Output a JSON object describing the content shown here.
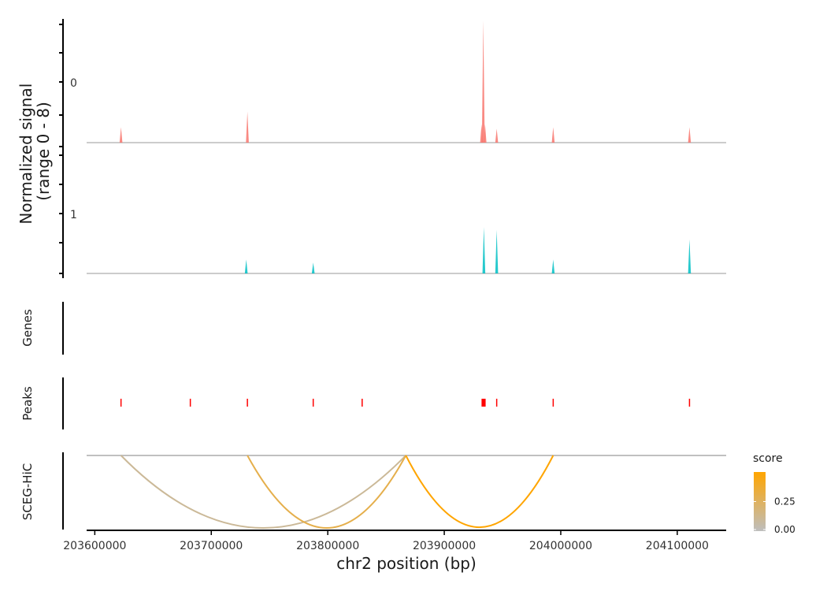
{
  "chart_data": {
    "type": "genome-track-plot",
    "region": {
      "chrom": "chr2",
      "start": 203593000,
      "end": 204142000
    },
    "x_ticks": [
      {
        "value": 203600000,
        "label": "203600000"
      },
      {
        "value": 203700000,
        "label": "203700000"
      },
      {
        "value": 203800000,
        "label": "203800000"
      },
      {
        "value": 203900000,
        "label": "203900000"
      },
      {
        "value": 204000000,
        "label": "204000000"
      },
      {
        "value": 204100000,
        "label": "204100000"
      }
    ],
    "xlabel": "chr2 position (bp)",
    "coverage": {
      "ylabel_line1": "Normalized signal",
      "ylabel_line2": "(range 0 - 8)",
      "ylim": [
        0,
        8
      ],
      "series": [
        {
          "name": "0",
          "color": "#f8766d",
          "peaks": [
            {
              "x": 203622500,
              "y": 1.0
            },
            {
              "x": 203731000,
              "y": 2.0
            },
            {
              "x": 203933500,
              "y": 7.9
            },
            {
              "x": 203932000,
              "y": 1.2
            },
            {
              "x": 203935000,
              "y": 1.2
            },
            {
              "x": 203945000,
              "y": 0.9
            },
            {
              "x": 203993500,
              "y": 1.0
            },
            {
              "x": 204110500,
              "y": 1.0
            }
          ]
        },
        {
          "name": "1",
          "color": "#00bfc4",
          "peaks": [
            {
              "x": 203730000,
              "y": 0.9
            },
            {
              "x": 203787500,
              "y": 0.7
            },
            {
              "x": 203934000,
              "y": 3.0
            },
            {
              "x": 203945000,
              "y": 2.8
            },
            {
              "x": 203993500,
              "y": 0.9
            },
            {
              "x": 204110500,
              "y": 2.2
            }
          ]
        }
      ]
    },
    "genes": {
      "label": "Genes",
      "features": []
    },
    "peaks": {
      "label": "Peaks",
      "color": "#ff0000",
      "features": [
        {
          "start": 203622000,
          "end": 203623000
        },
        {
          "start": 203681500,
          "end": 203682500
        },
        {
          "start": 203730500,
          "end": 203731500
        },
        {
          "start": 203787000,
          "end": 203788000
        },
        {
          "start": 203829000,
          "end": 203830000
        },
        {
          "start": 203932000,
          "end": 203935500
        },
        {
          "start": 203944500,
          "end": 203945500
        },
        {
          "start": 203993000,
          "end": 203994000
        },
        {
          "start": 204110000,
          "end": 204111000
        }
      ]
    },
    "links": {
      "label": "SCEG-HiC",
      "legend_title": "score",
      "score_range": [
        0,
        0.5
      ],
      "color_low": "#bebebe",
      "color_high": "#ffa500",
      "legend_breaks": [
        {
          "value": 0.25,
          "label": "0.25"
        },
        {
          "value": 0.0,
          "label": "0.00"
        }
      ],
      "arcs": [
        {
          "start": 203622500,
          "end": 203867000,
          "score": 0.1
        },
        {
          "start": 203731000,
          "end": 203867000,
          "score": 0.3
        },
        {
          "start": 203867000,
          "end": 203993500,
          "score": 0.5
        }
      ]
    }
  }
}
